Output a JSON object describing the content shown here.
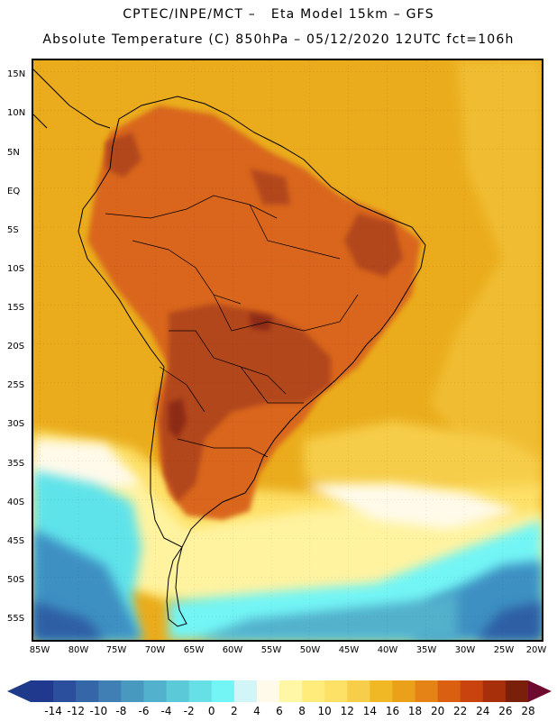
{
  "header": {
    "line1": "CPTEC/INPE/MCT –   Eta Model 15km – GFS",
    "line2": "Absolute Temperature (C) 850hPa – 05/12/2020 12UTC fct=106h"
  },
  "axes": {
    "lat_labels": [
      "15N",
      "10N",
      "5N",
      "EQ",
      "5S",
      "10S",
      "15S",
      "20S",
      "25S",
      "30S",
      "35S",
      "40S",
      "45S",
      "50S",
      "55S"
    ],
    "lon_labels": [
      "85W",
      "80W",
      "75W",
      "70W",
      "65W",
      "60W",
      "55W",
      "50W",
      "45W",
      "40W",
      "35W",
      "30W",
      "25W",
      "20W"
    ]
  },
  "colorbar": {
    "labels": [
      "-14",
      "-12",
      "-10",
      "-8",
      "-6",
      "-4",
      "-2",
      "0",
      "2",
      "4",
      "6",
      "8",
      "10",
      "12",
      "14",
      "16",
      "18",
      "20",
      "22",
      "24",
      "26",
      "28"
    ],
    "colors": [
      "#21388f",
      "#2b4f9c",
      "#3567a8",
      "#3f7fb4",
      "#4998c0",
      "#52b1cc",
      "#5cc9d8",
      "#66e0e4",
      "#73f5f5",
      "#d2f6f8",
      "#fffaea",
      "#fff7a6",
      "#ffec7a",
      "#fde066",
      "#f7cd4a",
      "#f1b826",
      "#eba01a",
      "#e58317",
      "#db5f10",
      "#c8430d",
      "#a7300a",
      "#7a1f0a"
    ],
    "under_color": "#1e3a8a",
    "over_color": "#6e0a2e"
  },
  "map": {
    "background_color": "#eaac1c",
    "land_hot": "#d9661c",
    "land_hotter": "#b2461a",
    "land_hottest": "#8c2a12",
    "cold_cyan": "#5fe3ea",
    "cold_blue": "#3d90c2",
    "cold_deep": "#2d5fa4"
  }
}
